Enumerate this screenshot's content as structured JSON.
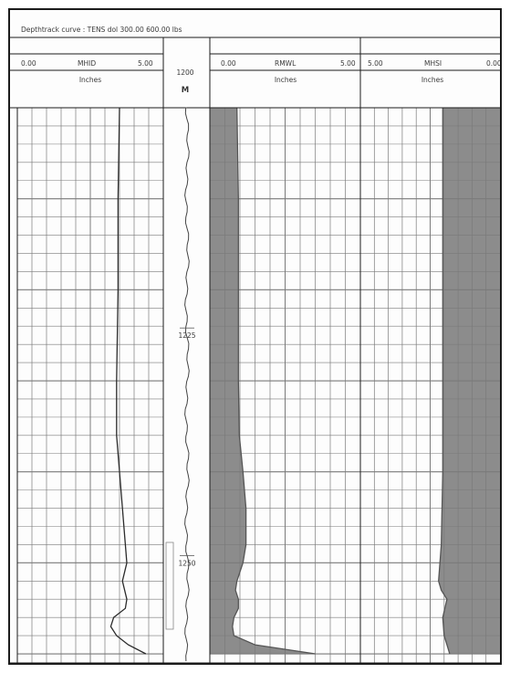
{
  "header": {
    "curve_line": "Depthtrack curve : TENS  dol  300.00  600.00 lbs"
  },
  "tracks": [
    {
      "min": "0.00",
      "mnemonic": "MHID",
      "max": "5.00",
      "unit": "Inches"
    },
    {
      "min": "0.00",
      "mnemonic": "RMWL",
      "max": "5.00",
      "unit": "Inches"
    },
    {
      "min": "5.00",
      "mnemonic": "MHSI",
      "max": "0.00",
      "unit": "Inches"
    }
  ],
  "depth_track": {
    "start_depth": "1200",
    "unit": "M",
    "markers": [
      "1225",
      "1250"
    ]
  },
  "colors": {
    "fill": "#8c8c8c",
    "grid": "#7a7a7a",
    "curve": "#2b2b2b",
    "frame": "#1b1b1b"
  },
  "chart_data": {
    "type": "line",
    "title": "Depthtrack curve : TENS  dol  300.00  600.00 lbs",
    "depth_unit": "M",
    "ylim": [
      1200,
      1261
    ],
    "depth_labels": [
      1225,
      1250
    ],
    "series": [
      {
        "name": "MHID",
        "xlim": [
          0,
          5
        ],
        "depth": [
          1200,
          1210,
          1220,
          1230,
          1236,
          1240,
          1244,
          1248,
          1250,
          1252,
          1254,
          1255,
          1256,
          1257,
          1258,
          1259,
          1260
        ],
        "values": [
          3.5,
          3.45,
          3.45,
          3.4,
          3.4,
          3.5,
          3.6,
          3.7,
          3.75,
          3.6,
          3.75,
          3.7,
          3.3,
          3.2,
          3.4,
          3.8,
          4.4
        ]
      },
      {
        "name": "RMWL",
        "xlim": [
          0,
          5
        ],
        "fill": "left",
        "depth": [
          1200,
          1210,
          1220,
          1230,
          1236,
          1240,
          1244,
          1248,
          1250,
          1251,
          1252,
          1253,
          1254,
          1255,
          1256,
          1257,
          1258,
          1259,
          1260
        ],
        "values": [
          0.9,
          0.95,
          0.95,
          0.95,
          0.98,
          1.1,
          1.2,
          1.2,
          1.1,
          1.0,
          0.9,
          0.85,
          0.95,
          0.95,
          0.8,
          0.75,
          0.8,
          1.5,
          3.5
        ]
      },
      {
        "name": "MHSI",
        "xlim": [
          5,
          0
        ],
        "fill": "right",
        "depth": [
          1200,
          1210,
          1220,
          1230,
          1240,
          1248,
          1250,
          1252,
          1253,
          1254,
          1256,
          1258,
          1259,
          1260
        ],
        "values": [
          2.05,
          2.05,
          2.05,
          2.05,
          2.05,
          2.1,
          2.15,
          2.2,
          2.1,
          1.9,
          2.05,
          2.0,
          1.9,
          1.8
        ]
      }
    ]
  }
}
